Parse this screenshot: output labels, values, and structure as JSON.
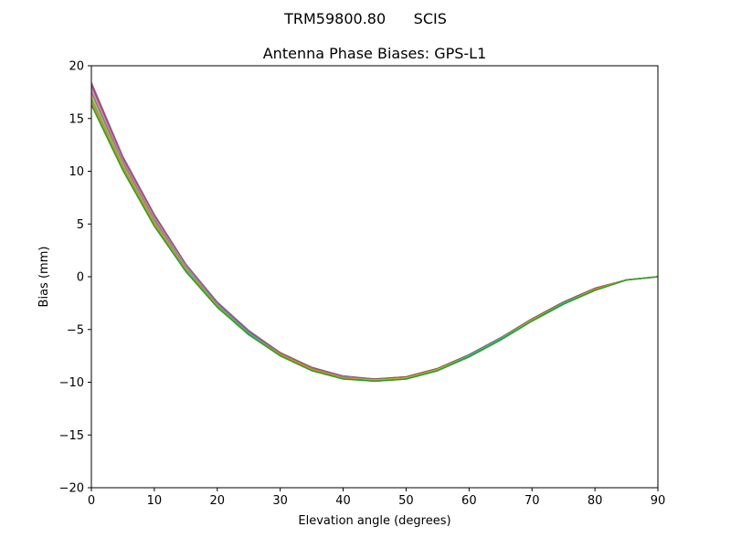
{
  "figure": {
    "suptitle": "TRM59800.80      SCIS"
  },
  "chart_data": {
    "type": "line",
    "title": "Antenna Phase Biases: GPS-L1",
    "xlabel": "Elevation angle (degrees)",
    "ylabel": "Bias (mm)",
    "xlim": [
      0,
      90
    ],
    "ylim": [
      -20,
      20
    ],
    "xticks": [
      0,
      10,
      20,
      30,
      40,
      50,
      60,
      70,
      80,
      90
    ],
    "xtick_labels": [
      "0",
      "10",
      "20",
      "30",
      "40",
      "50",
      "60",
      "70",
      "80",
      "90"
    ],
    "yticks": [
      -20,
      -15,
      -10,
      -5,
      0,
      5,
      10,
      15,
      20
    ],
    "ytick_labels": [
      "−20",
      "−15",
      "−10",
      "−5",
      "0",
      "5",
      "10",
      "15",
      "20"
    ],
    "grid": false,
    "x": [
      0,
      5,
      10,
      15,
      20,
      25,
      30,
      35,
      40,
      45,
      50,
      55,
      60,
      65,
      70,
      75,
      80,
      85,
      90
    ],
    "series": [
      {
        "color": "#9467bd",
        "values": [
          18.4,
          11.4,
          5.9,
          1.2,
          -2.4,
          -5.1,
          -7.2,
          -8.6,
          -9.4,
          -9.7,
          -9.5,
          -8.7,
          -7.4,
          -5.8,
          -4.0,
          -2.4,
          -1.1,
          -0.3,
          0.0
        ]
      },
      {
        "color": "#8c564b",
        "values": [
          18.2,
          11.2,
          5.8,
          1.1,
          -2.5,
          -5.2,
          -7.2,
          -8.6,
          -9.5,
          -9.7,
          -9.5,
          -8.7,
          -7.4,
          -5.8,
          -4.0,
          -2.4,
          -1.1,
          -0.3,
          0.0
        ]
      },
      {
        "color": "#e377c2",
        "values": [
          17.9,
          11.0,
          5.6,
          1.0,
          -2.6,
          -5.3,
          -7.3,
          -8.7,
          -9.5,
          -9.8,
          -9.6,
          -8.8,
          -7.5,
          -5.9,
          -4.1,
          -2.5,
          -1.2,
          -0.3,
          0.0
        ]
      },
      {
        "color": "#7f7f7f",
        "values": [
          17.5,
          10.8,
          5.4,
          0.9,
          -2.6,
          -5.3,
          -7.3,
          -8.7,
          -9.5,
          -9.8,
          -9.6,
          -8.8,
          -7.5,
          -5.9,
          -4.1,
          -2.5,
          -1.2,
          -0.3,
          0.0
        ]
      },
      {
        "color": "#bcbd22",
        "values": [
          17.1,
          10.6,
          5.2,
          0.8,
          -2.7,
          -5.4,
          -7.4,
          -8.8,
          -9.6,
          -9.8,
          -9.6,
          -8.8,
          -7.5,
          -5.9,
          -4.1,
          -2.5,
          -1.2,
          -0.3,
          0.0
        ]
      },
      {
        "color": "#17becf",
        "values": [
          16.8,
          10.4,
          5.1,
          0.7,
          -2.7,
          -5.4,
          -7.4,
          -8.8,
          -9.6,
          -9.9,
          -9.7,
          -8.9,
          -7.5,
          -5.9,
          -4.2,
          -2.5,
          -1.2,
          -0.3,
          0.0
        ]
      },
      {
        "color": "#ff7f0e",
        "values": [
          16.6,
          10.3,
          5.0,
          0.6,
          -2.8,
          -5.5,
          -7.4,
          -8.8,
          -9.6,
          -9.9,
          -9.7,
          -8.9,
          -7.6,
          -6.0,
          -4.2,
          -2.6,
          -1.2,
          -0.3,
          0.0
        ]
      },
      {
        "color": "#2ca02c",
        "values": [
          16.3,
          10.1,
          4.8,
          0.5,
          -2.9,
          -5.5,
          -7.5,
          -8.9,
          -9.7,
          -9.9,
          -9.7,
          -8.9,
          -7.6,
          -6.0,
          -4.2,
          -2.6,
          -1.3,
          -0.3,
          0.0
        ]
      }
    ]
  }
}
